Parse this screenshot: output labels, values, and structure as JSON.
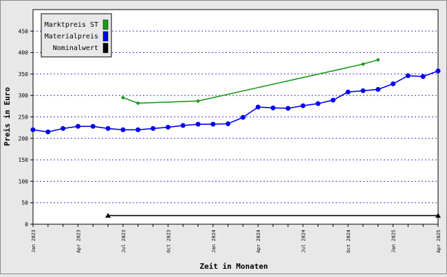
{
  "chart_data": {
    "type": "line",
    "x_label": "Zeit in Monaten",
    "y_label": "Preis in Euro",
    "x": [
      "Jan 2023",
      "Feb 2023",
      "Mar 2023",
      "Apr 2023",
      "May 2023",
      "Jun 2023",
      "Jul 2023",
      "Aug 2023",
      "Sep 2023",
      "Oct 2023",
      "Nov 2023",
      "Dec 2023",
      "Jan 2024",
      "Feb 2024",
      "Mar 2024",
      "Apr 2024",
      "May 2024",
      "Jun 2024",
      "Jul 2024",
      "Aug 2024",
      "Sep 2024",
      "Oct 2024",
      "Nov 2024",
      "Dec 2024",
      "Jan 2025",
      "Feb 2025",
      "Mar 2025",
      "Apr 2025"
    ],
    "xticks": [
      "Jan 2023",
      "Apr 2023",
      "Jul 2023",
      "Oct 2023",
      "Jan 2024",
      "Apr 2024",
      "Jul 2024",
      "Oct 2024",
      "Jan 2025",
      "Apr 2025"
    ],
    "ylim": [
      0,
      500
    ],
    "yticks": [
      0,
      50,
      100,
      150,
      200,
      250,
      300,
      350,
      400,
      450
    ],
    "grid": true,
    "series": [
      {
        "name": "Marktpreis ST",
        "color": "#1a9a1a",
        "marker": "diamond",
        "x": [
          "Jul 2023",
          "Aug 2023",
          "Dec 2023",
          "Nov 2024",
          "Dec 2024"
        ],
        "values": [
          295,
          282,
          287,
          373,
          383
        ]
      },
      {
        "name": "Materialpreis",
        "color": "#0000ee",
        "marker": "circle",
        "values": [
          220,
          215,
          223,
          228,
          228,
          223,
          220,
          220,
          223,
          226,
          230,
          233,
          233,
          234,
          249,
          273,
          271,
          270,
          276,
          281,
          289,
          308,
          311,
          314,
          327,
          346,
          344,
          357
        ]
      },
      {
        "name": "Nominalwert",
        "color": "#000000",
        "marker": "triangle",
        "x": [
          "Jun 2023",
          "Apr 2025"
        ],
        "values": [
          20,
          20
        ]
      }
    ]
  }
}
